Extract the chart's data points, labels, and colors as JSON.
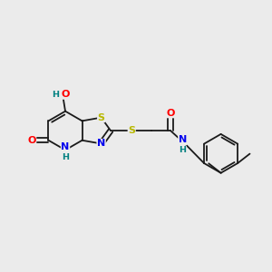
{
  "bg_color": "#ebebeb",
  "bond_color": "#1a1a1a",
  "atom_colors": {
    "S": "#b8b800",
    "O": "#ff0000",
    "N": "#0000ee",
    "H": "#008080",
    "C": "#1a1a1a"
  },
  "font_size": 8.0,
  "lw": 1.3
}
